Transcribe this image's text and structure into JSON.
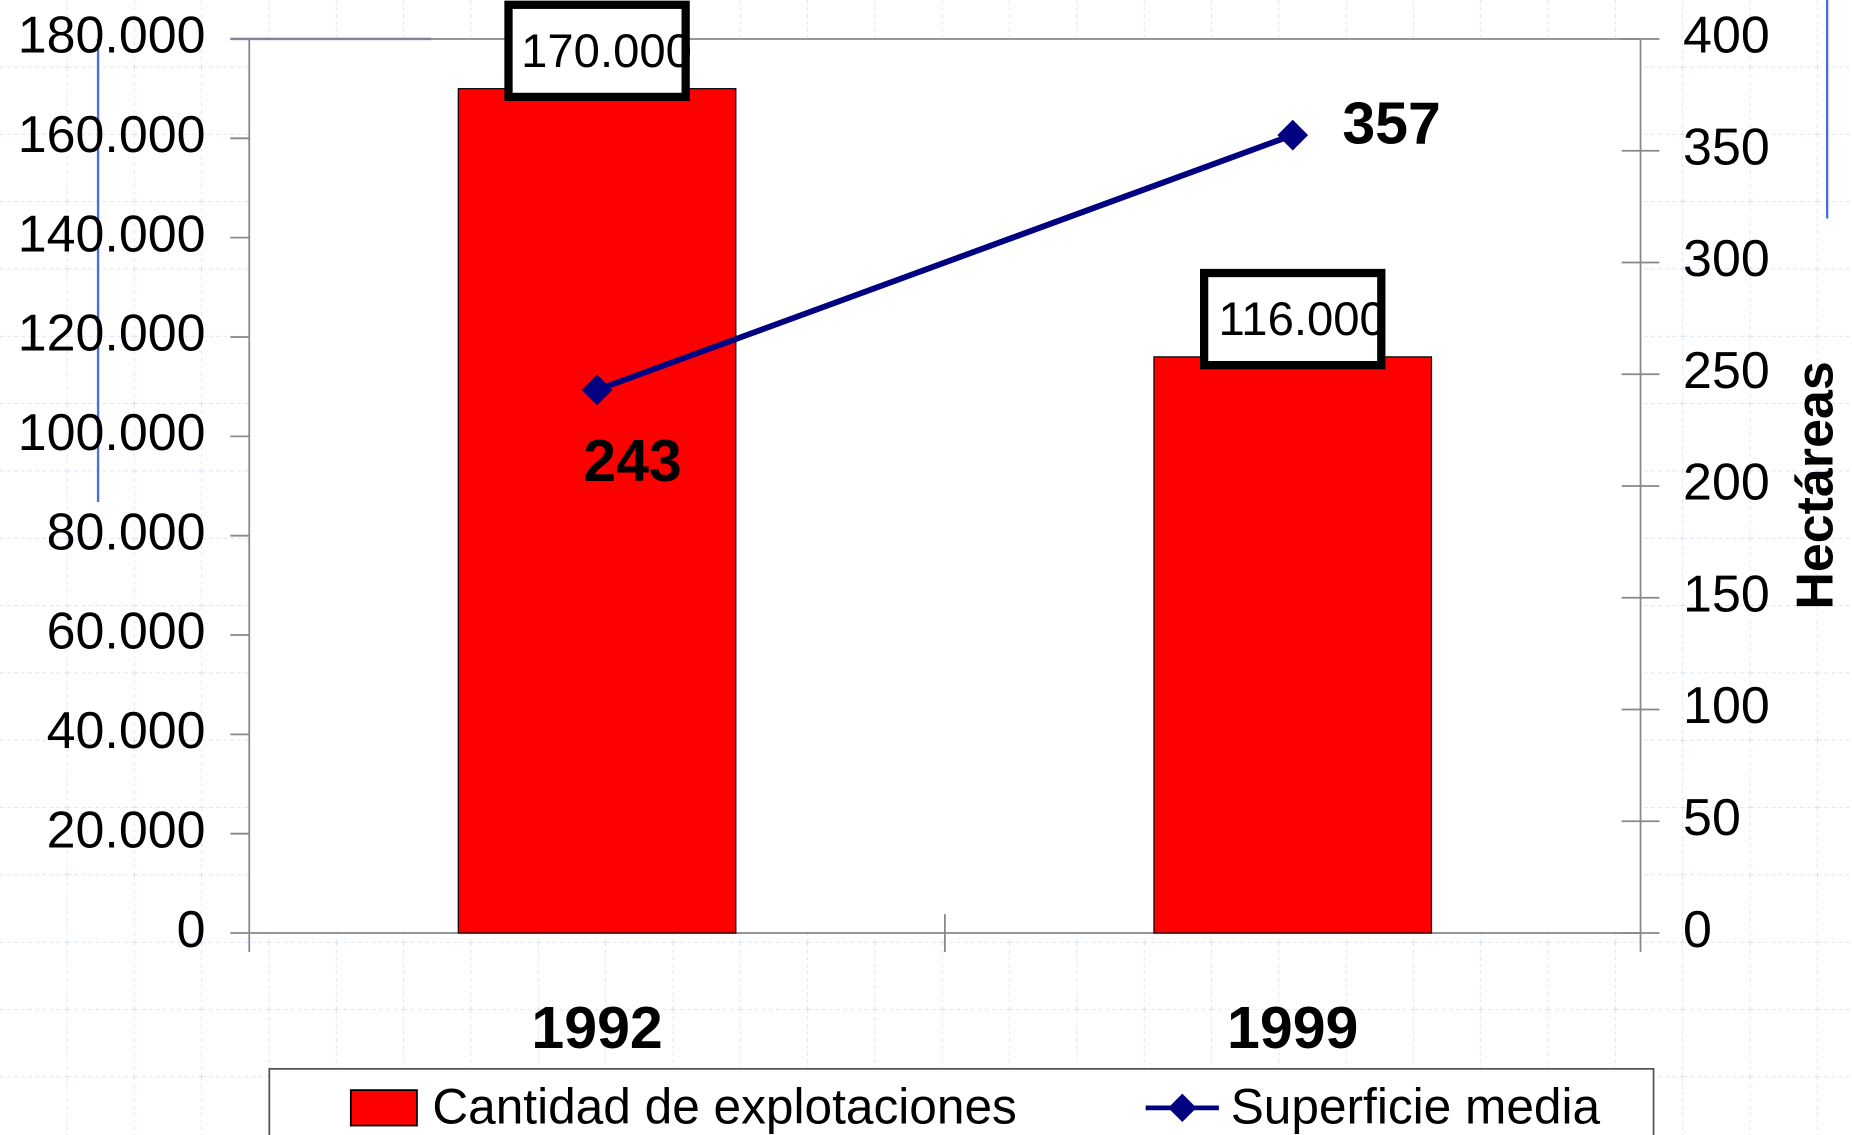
{
  "chart_data": {
    "type": "bar",
    "categories": [
      "1992",
      "1999"
    ],
    "series": [
      {
        "name": "Cantidad de explotaciones",
        "type": "bar",
        "color": "#ff0000",
        "values": [
          170000,
          116000
        ],
        "value_labels": [
          "170.000",
          "116.000"
        ]
      },
      {
        "name": "Superficie media",
        "type": "line",
        "axis": "y2",
        "color": "#000080",
        "values": [
          243,
          357
        ]
      }
    ],
    "ylim": [
      0,
      180000
    ],
    "yticks": [
      0,
      {
        "value": 20000,
        "label": "20.000"
      },
      {
        "value": 40000,
        "label": "40.000"
      },
      {
        "value": 60000,
        "label": "60.000"
      },
      {
        "value": 80000,
        "label": "80.000"
      },
      {
        "value": 100000,
        "label": "100.000"
      },
      {
        "value": 120000,
        "label": "120.000"
      },
      {
        "value": 140000,
        "label": "140.000"
      },
      {
        "value": 160000,
        "label": "160.000"
      },
      {
        "value": 180000,
        "label": "180.000"
      }
    ],
    "y2lim": [
      0,
      400
    ],
    "y2ticks": [
      0,
      50,
      100,
      150,
      200,
      250,
      300,
      350,
      400
    ],
    "y2label": "Hectáreas",
    "legend": "bottom"
  }
}
